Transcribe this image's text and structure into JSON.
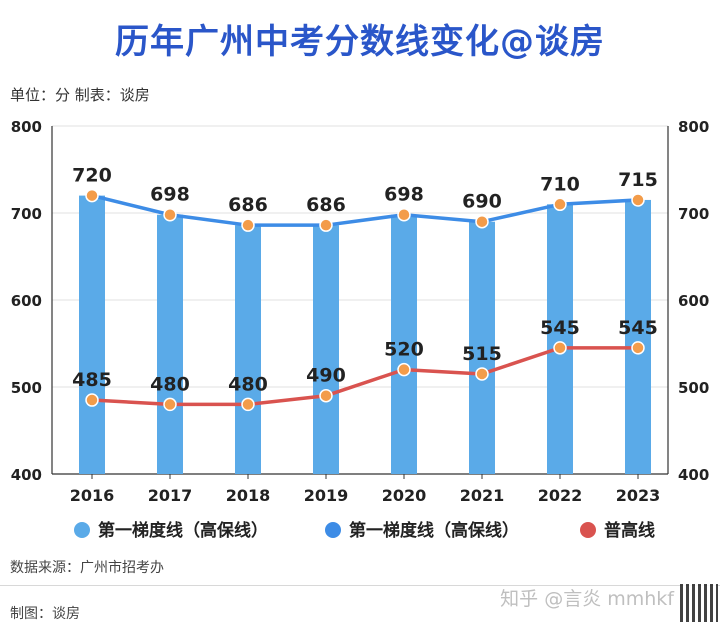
{
  "header": {
    "title": "历年广州中考分数线变化@谈房",
    "unit_note": "单位：分 制表：谈房"
  },
  "footer": {
    "source": "数据来源：广州市招考办",
    "maker": "制图：谈房",
    "watermark": "知乎 @言炎 mmhkf"
  },
  "colors": {
    "title": "#2a56c9",
    "bar": "#5aaae8",
    "line1": "#3d8ce6",
    "line2": "#d9534f",
    "marker": "#f39c4a"
  },
  "chart_data": {
    "type": "bar",
    "categories": [
      "2016",
      "2017",
      "2018",
      "2019",
      "2020",
      "2021",
      "2022",
      "2023"
    ],
    "series": [
      {
        "name": "第一梯度线（高保线）",
        "type": "bar",
        "values": [
          720,
          698,
          686,
          686,
          698,
          690,
          710,
          715
        ]
      },
      {
        "name": "第一梯度线（高保线）",
        "type": "line",
        "values": [
          720,
          698,
          686,
          686,
          698,
          690,
          710,
          715
        ]
      },
      {
        "name": "普高线",
        "type": "line",
        "values": [
          485,
          480,
          480,
          490,
          520,
          515,
          545,
          545
        ]
      }
    ],
    "ylim": [
      400,
      800
    ],
    "yticks": [
      400,
      500,
      600,
      700,
      800
    ],
    "legend_position": "bottom",
    "grid": true
  }
}
